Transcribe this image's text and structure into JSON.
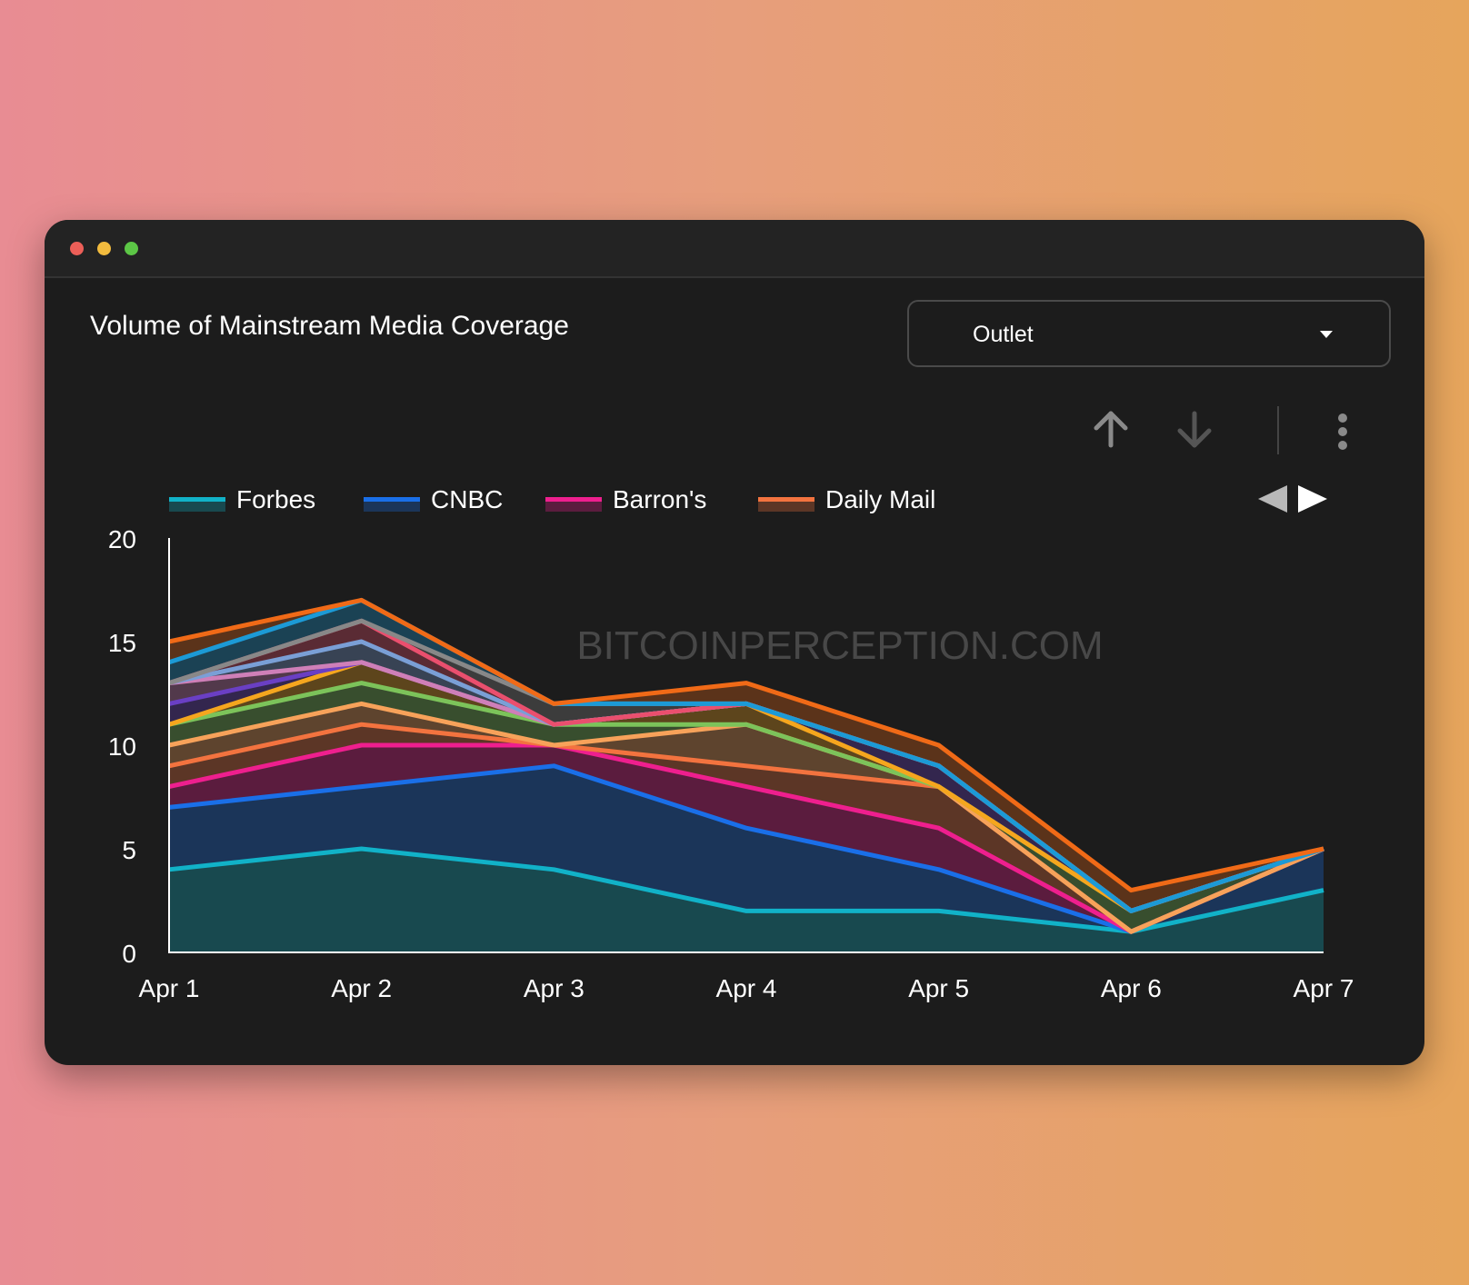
{
  "window": {
    "controls": [
      "close",
      "minimize",
      "zoom"
    ]
  },
  "header": {
    "title": "Volume of Mainstream Media Coverage"
  },
  "dropdown": {
    "label": "Outlet"
  },
  "toolbar": {
    "icons": [
      "arrow-up-icon",
      "arrow-down-icon",
      "more-vertical-icon"
    ],
    "legend_nav_icons": [
      "legend-prev-icon",
      "legend-next-icon"
    ]
  },
  "colors": {
    "window_bg": "#1c1c1c",
    "text": "#ffffff",
    "icon": "#8a8a8a"
  },
  "chart_data": {
    "type": "area",
    "stacked": true,
    "title": "",
    "xlabel": "",
    "ylabel": "",
    "categories": [
      "Apr 1",
      "Apr 2",
      "Apr 3",
      "Apr 4",
      "Apr 5",
      "Apr 6",
      "Apr 7"
    ],
    "ylim": [
      0,
      20
    ],
    "yticks": [
      "0",
      "5",
      "10",
      "15",
      "20"
    ],
    "legend_position": "top-left",
    "watermark": "BITCOINPERCEPTION.COM",
    "series": [
      {
        "name": "Forbes",
        "color": "#11b2c8",
        "values": [
          4,
          5,
          4,
          2,
          2,
          1,
          3
        ]
      },
      {
        "name": "CNBC",
        "color": "#1a6fe8",
        "values": [
          3,
          3,
          5,
          4,
          2,
          0,
          2
        ]
      },
      {
        "name": "Barron's",
        "color": "#ee1f8e",
        "values": [
          1,
          2,
          1,
          2,
          2,
          0,
          0
        ]
      },
      {
        "name": "Daily Mail",
        "color": "#f3733f",
        "values": [
          1,
          1,
          0,
          1,
          2,
          0,
          0
        ]
      },
      {
        "color": "#f7a25a",
        "values": [
          1,
          1,
          0,
          2,
          0,
          0,
          0
        ]
      },
      {
        "color": "#7cc35a",
        "values": [
          1,
          1,
          1,
          0,
          0,
          1,
          0
        ]
      },
      {
        "color": "#f5a61e",
        "values": [
          0,
          1,
          0,
          1,
          0,
          0,
          0
        ]
      },
      {
        "color": "#6a3fc4",
        "values": [
          1,
          0,
          0,
          0,
          1,
          0,
          0
        ]
      },
      {
        "color": "#cf7fb8",
        "values": [
          1,
          0,
          0,
          0,
          0,
          0,
          0
        ]
      },
      {
        "color": "#7a9fd6",
        "values": [
          0,
          1,
          0,
          0,
          0,
          0,
          0
        ]
      },
      {
        "color": "#ea4f6e",
        "values": [
          0,
          1,
          0,
          0,
          0,
          0,
          0
        ]
      },
      {
        "color": "#888888",
        "values": [
          0,
          0,
          1,
          0,
          0,
          0,
          0
        ]
      },
      {
        "color": "#1c9ad6",
        "values": [
          1,
          1,
          0,
          0,
          0,
          0,
          0
        ]
      },
      {
        "color": "#f06a17",
        "values": [
          1,
          0,
          0,
          1,
          1,
          1,
          0
        ]
      }
    ]
  }
}
